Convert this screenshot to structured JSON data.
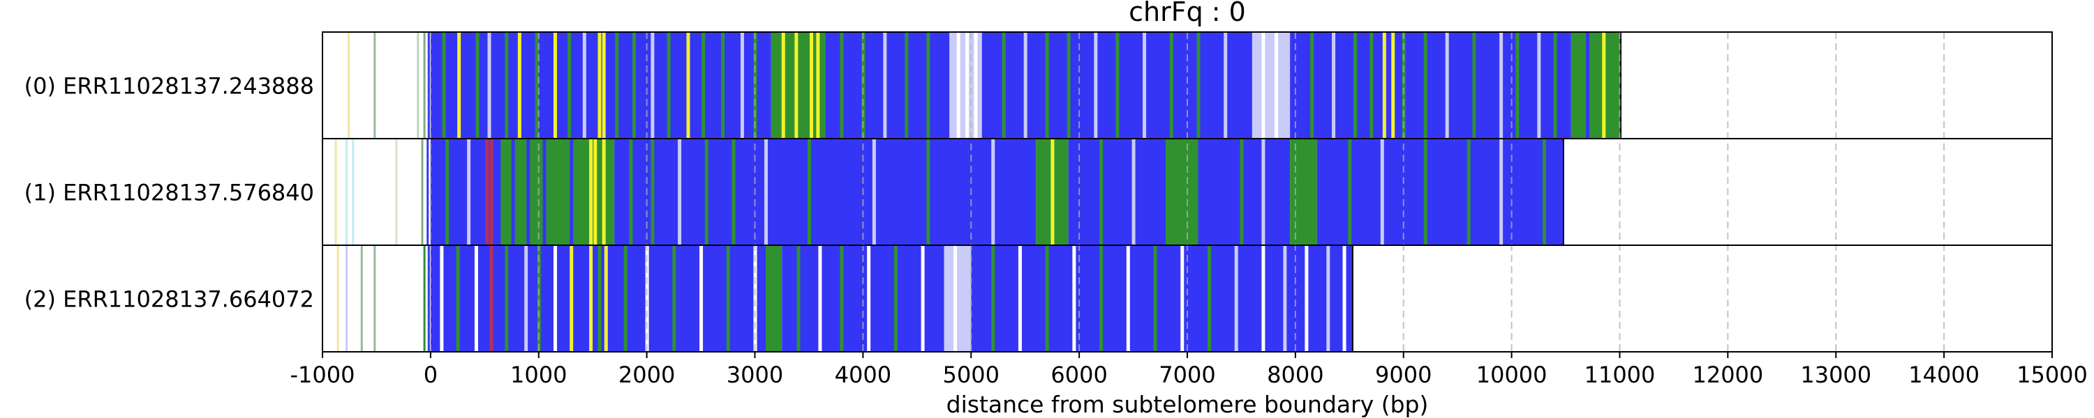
{
  "chart_data": {
    "type": "heatmap",
    "title": "chrFq : 0",
    "xlabel": "distance from subtelomere boundary (bp)",
    "ylabel": "",
    "xlim": [
      -1000,
      15000
    ],
    "xticks": [
      -1000,
      0,
      1000,
      2000,
      3000,
      4000,
      5000,
      6000,
      7000,
      8000,
      9000,
      10000,
      11000,
      12000,
      13000,
      14000,
      15000
    ],
    "grid": "vertical dashed at x ticks",
    "colors": {
      "blue": "#3535f5",
      "green": "#2f922f",
      "yellow": "#f2f22c",
      "white": "#ffffff",
      "lightblue": "#c9ccf7"
    },
    "rows": [
      {
        "label": "(0) ERR11028137.243888",
        "read_start": -1000,
        "read_end": 11010,
        "pre_marks": [
          {
            "x": -760,
            "color": "#f2e6a0"
          },
          {
            "x": -520,
            "color": "#9ab89a"
          },
          {
            "x": -120,
            "color": "#b9d7b9"
          },
          {
            "x": -60,
            "color": "#7fb07f"
          },
          {
            "x": -20,
            "color": "#3535f5"
          }
        ],
        "segments": [
          {
            "start": 0,
            "end": 3150,
            "color": "#3535f5"
          },
          {
            "start": 3150,
            "end": 3650,
            "color": "#2f922f"
          },
          {
            "start": 3650,
            "end": 4800,
            "color": "#3535f5"
          },
          {
            "start": 4800,
            "end": 5100,
            "color": "#c9ccf7"
          },
          {
            "start": 5100,
            "end": 7600,
            "color": "#3535f5"
          },
          {
            "start": 7600,
            "end": 7950,
            "color": "#c9ccf7"
          },
          {
            "start": 7950,
            "end": 10550,
            "color": "#3535f5"
          },
          {
            "start": 10550,
            "end": 11010,
            "color": "#2f922f"
          }
        ],
        "marks": [
          {
            "x": 120,
            "color": "#2f922f"
          },
          {
            "x": 260,
            "color": "#f2f22c"
          },
          {
            "x": 430,
            "color": "#2f922f"
          },
          {
            "x": 540,
            "color": "#c9ccf7"
          },
          {
            "x": 700,
            "color": "#2f922f"
          },
          {
            "x": 820,
            "color": "#f2f22c"
          },
          {
            "x": 980,
            "color": "#2f922f"
          },
          {
            "x": 1150,
            "color": "#f2f22c"
          },
          {
            "x": 1280,
            "color": "#2f922f"
          },
          {
            "x": 1420,
            "color": "#c9ccf7"
          },
          {
            "x": 1560,
            "color": "#f2f22c"
          },
          {
            "x": 1600,
            "color": "#f2f22c"
          },
          {
            "x": 1720,
            "color": "#2f922f"
          },
          {
            "x": 1880,
            "color": "#2f922f"
          },
          {
            "x": 2050,
            "color": "#c9ccf7"
          },
          {
            "x": 2200,
            "color": "#2f922f"
          },
          {
            "x": 2380,
            "color": "#f2f22c"
          },
          {
            "x": 2520,
            "color": "#2f922f"
          },
          {
            "x": 2700,
            "color": "#2f922f"
          },
          {
            "x": 2880,
            "color": "#c9ccf7"
          },
          {
            "x": 3000,
            "color": "#2f922f"
          },
          {
            "x": 3260,
            "color": "#f2f22c"
          },
          {
            "x": 3380,
            "color": "#f2f22c"
          },
          {
            "x": 3520,
            "color": "#f2f22c"
          },
          {
            "x": 3580,
            "color": "#f2f22c"
          },
          {
            "x": 3800,
            "color": "#2f922f"
          },
          {
            "x": 4000,
            "color": "#2f922f"
          },
          {
            "x": 4200,
            "color": "#c9ccf7"
          },
          {
            "x": 4400,
            "color": "#2f922f"
          },
          {
            "x": 4600,
            "color": "#2f922f"
          },
          {
            "x": 4880,
            "color": "#ffffff"
          },
          {
            "x": 4960,
            "color": "#ffffff"
          },
          {
            "x": 5040,
            "color": "#ffffff"
          },
          {
            "x": 5300,
            "color": "#2f922f"
          },
          {
            "x": 5500,
            "color": "#c9ccf7"
          },
          {
            "x": 5700,
            "color": "#2f922f"
          },
          {
            "x": 5900,
            "color": "#2f922f"
          },
          {
            "x": 6150,
            "color": "#c9ccf7"
          },
          {
            "x": 6350,
            "color": "#2f922f"
          },
          {
            "x": 6600,
            "color": "#c9ccf7"
          },
          {
            "x": 6850,
            "color": "#2f922f"
          },
          {
            "x": 7100,
            "color": "#2f922f"
          },
          {
            "x": 7350,
            "color": "#c9ccf7"
          },
          {
            "x": 7700,
            "color": "#ffffff"
          },
          {
            "x": 7820,
            "color": "#ffffff"
          },
          {
            "x": 8150,
            "color": "#2f922f"
          },
          {
            "x": 8350,
            "color": "#c9ccf7"
          },
          {
            "x": 8550,
            "color": "#2f922f"
          },
          {
            "x": 8700,
            "color": "#2f922f"
          },
          {
            "x": 8820,
            "color": "#f2f22c"
          },
          {
            "x": 8900,
            "color": "#f2f22c"
          },
          {
            "x": 9000,
            "color": "#2f922f"
          },
          {
            "x": 9200,
            "color": "#2f922f"
          },
          {
            "x": 9400,
            "color": "#c9ccf7"
          },
          {
            "x": 9650,
            "color": "#2f922f"
          },
          {
            "x": 9900,
            "color": "#c9ccf7"
          },
          {
            "x": 10050,
            "color": "#2f922f"
          },
          {
            "x": 10250,
            "color": "#c9ccf7"
          },
          {
            "x": 10400,
            "color": "#2f922f"
          },
          {
            "x": 10700,
            "color": "#3535f5"
          },
          {
            "x": 10850,
            "color": "#f2f22c"
          }
        ]
      },
      {
        "label": "(1) ERR11028137.576840",
        "read_start": -1000,
        "read_end": 10480,
        "pre_marks": [
          {
            "x": -880,
            "color": "#f2e6a0"
          },
          {
            "x": -780,
            "color": "#bfeeee"
          },
          {
            "x": -720,
            "color": "#bfeeee"
          },
          {
            "x": -320,
            "color": "#e0e0c0"
          },
          {
            "x": -80,
            "color": "#7fb07f"
          },
          {
            "x": -30,
            "color": "#3535f5"
          }
        ],
        "segments": [
          {
            "start": 0,
            "end": 650,
            "color": "#3535f5"
          },
          {
            "start": 650,
            "end": 1700,
            "color": "#2f922f"
          },
          {
            "start": 1700,
            "end": 5600,
            "color": "#3535f5"
          },
          {
            "start": 5600,
            "end": 5900,
            "color": "#2f922f"
          },
          {
            "start": 5900,
            "end": 6800,
            "color": "#3535f5"
          },
          {
            "start": 6800,
            "end": 7100,
            "color": "#2f922f"
          },
          {
            "start": 7100,
            "end": 7950,
            "color": "#3535f5"
          },
          {
            "start": 7950,
            "end": 8200,
            "color": "#2f922f"
          },
          {
            "start": 8200,
            "end": 10480,
            "color": "#3535f5"
          }
        ],
        "marks": [
          {
            "x": 150,
            "color": "#2f922f"
          },
          {
            "x": 350,
            "color": "#c9ccf7"
          },
          {
            "x": 520,
            "color": "#b03060"
          },
          {
            "x": 560,
            "color": "#b03060"
          },
          {
            "x": 760,
            "color": "#3535f5"
          },
          {
            "x": 900,
            "color": "#3535f5"
          },
          {
            "x": 1050,
            "color": "#3535f5"
          },
          {
            "x": 1300,
            "color": "#3535f5"
          },
          {
            "x": 1480,
            "color": "#f2f22c"
          },
          {
            "x": 1520,
            "color": "#f2f22c"
          },
          {
            "x": 1600,
            "color": "#f2f22c"
          },
          {
            "x": 1850,
            "color": "#2f922f"
          },
          {
            "x": 2050,
            "color": "#2f922f"
          },
          {
            "x": 2300,
            "color": "#c9ccf7"
          },
          {
            "x": 2550,
            "color": "#2f922f"
          },
          {
            "x": 2800,
            "color": "#2f922f"
          },
          {
            "x": 3100,
            "color": "#c9ccf7"
          },
          {
            "x": 3500,
            "color": "#2f922f"
          },
          {
            "x": 4100,
            "color": "#c9ccf7"
          },
          {
            "x": 4600,
            "color": "#2f922f"
          },
          {
            "x": 5200,
            "color": "#c9ccf7"
          },
          {
            "x": 5750,
            "color": "#f2f22c"
          },
          {
            "x": 6200,
            "color": "#2f922f"
          },
          {
            "x": 6500,
            "color": "#c9ccf7"
          },
          {
            "x": 7500,
            "color": "#2f922f"
          },
          {
            "x": 7700,
            "color": "#c9ccf7"
          },
          {
            "x": 8500,
            "color": "#2f922f"
          },
          {
            "x": 8800,
            "color": "#c9ccf7"
          },
          {
            "x": 9200,
            "color": "#2f922f"
          },
          {
            "x": 9600,
            "color": "#2f922f"
          },
          {
            "x": 9900,
            "color": "#c9ccf7"
          },
          {
            "x": 10300,
            "color": "#2f922f"
          }
        ]
      },
      {
        "label": "(2) ERR11028137.664072",
        "read_start": -1000,
        "read_end": 8530,
        "pre_marks": [
          {
            "x": -860,
            "color": "#f2e6a0"
          },
          {
            "x": -780,
            "color": "#c9ccf7"
          },
          {
            "x": -640,
            "color": "#9ab89a"
          },
          {
            "x": -520,
            "color": "#9ab89a"
          },
          {
            "x": -60,
            "color": "#2f922f"
          },
          {
            "x": -20,
            "color": "#3535f5"
          }
        ],
        "segments": [
          {
            "start": 0,
            "end": 3100,
            "color": "#3535f5"
          },
          {
            "start": 3100,
            "end": 3250,
            "color": "#2f922f"
          },
          {
            "start": 3250,
            "end": 4750,
            "color": "#3535f5"
          },
          {
            "start": 4750,
            "end": 5000,
            "color": "#c9ccf7"
          },
          {
            "start": 5000,
            "end": 8530,
            "color": "#3535f5"
          }
        ],
        "marks": [
          {
            "x": 100,
            "color": "#ffffff"
          },
          {
            "x": 250,
            "color": "#2f922f"
          },
          {
            "x": 420,
            "color": "#ffffff"
          },
          {
            "x": 560,
            "color": "#b03060"
          },
          {
            "x": 700,
            "color": "#2f922f"
          },
          {
            "x": 880,
            "color": "#c9ccf7"
          },
          {
            "x": 1000,
            "color": "#2f922f"
          },
          {
            "x": 1150,
            "color": "#ffffff"
          },
          {
            "x": 1300,
            "color": "#f2f22c"
          },
          {
            "x": 1480,
            "color": "#f2f22c"
          },
          {
            "x": 1560,
            "color": "#2f922f"
          },
          {
            "x": 1620,
            "color": "#f2f22c"
          },
          {
            "x": 1800,
            "color": "#2f922f"
          },
          {
            "x": 2000,
            "color": "#ffffff"
          },
          {
            "x": 2250,
            "color": "#2f922f"
          },
          {
            "x": 2500,
            "color": "#ffffff"
          },
          {
            "x": 2750,
            "color": "#2f922f"
          },
          {
            "x": 3000,
            "color": "#ffffff"
          },
          {
            "x": 3400,
            "color": "#2f922f"
          },
          {
            "x": 3600,
            "color": "#ffffff"
          },
          {
            "x": 3800,
            "color": "#2f922f"
          },
          {
            "x": 4050,
            "color": "#ffffff"
          },
          {
            "x": 4300,
            "color": "#2f922f"
          },
          {
            "x": 4550,
            "color": "#ffffff"
          },
          {
            "x": 4850,
            "color": "#ffffff"
          },
          {
            "x": 5200,
            "color": "#2f922f"
          },
          {
            "x": 5450,
            "color": "#ffffff"
          },
          {
            "x": 5700,
            "color": "#2f922f"
          },
          {
            "x": 5950,
            "color": "#ffffff"
          },
          {
            "x": 6200,
            "color": "#2f922f"
          },
          {
            "x": 6450,
            "color": "#ffffff"
          },
          {
            "x": 6700,
            "color": "#2f922f"
          },
          {
            "x": 6950,
            "color": "#ffffff"
          },
          {
            "x": 7200,
            "color": "#2f922f"
          },
          {
            "x": 7450,
            "color": "#c9ccf7"
          },
          {
            "x": 7700,
            "color": "#ffffff"
          },
          {
            "x": 7900,
            "color": "#c9ccf7"
          },
          {
            "x": 8100,
            "color": "#ffffff"
          },
          {
            "x": 8300,
            "color": "#c9ccf7"
          },
          {
            "x": 8450,
            "color": "#ffffff"
          }
        ]
      }
    ]
  }
}
